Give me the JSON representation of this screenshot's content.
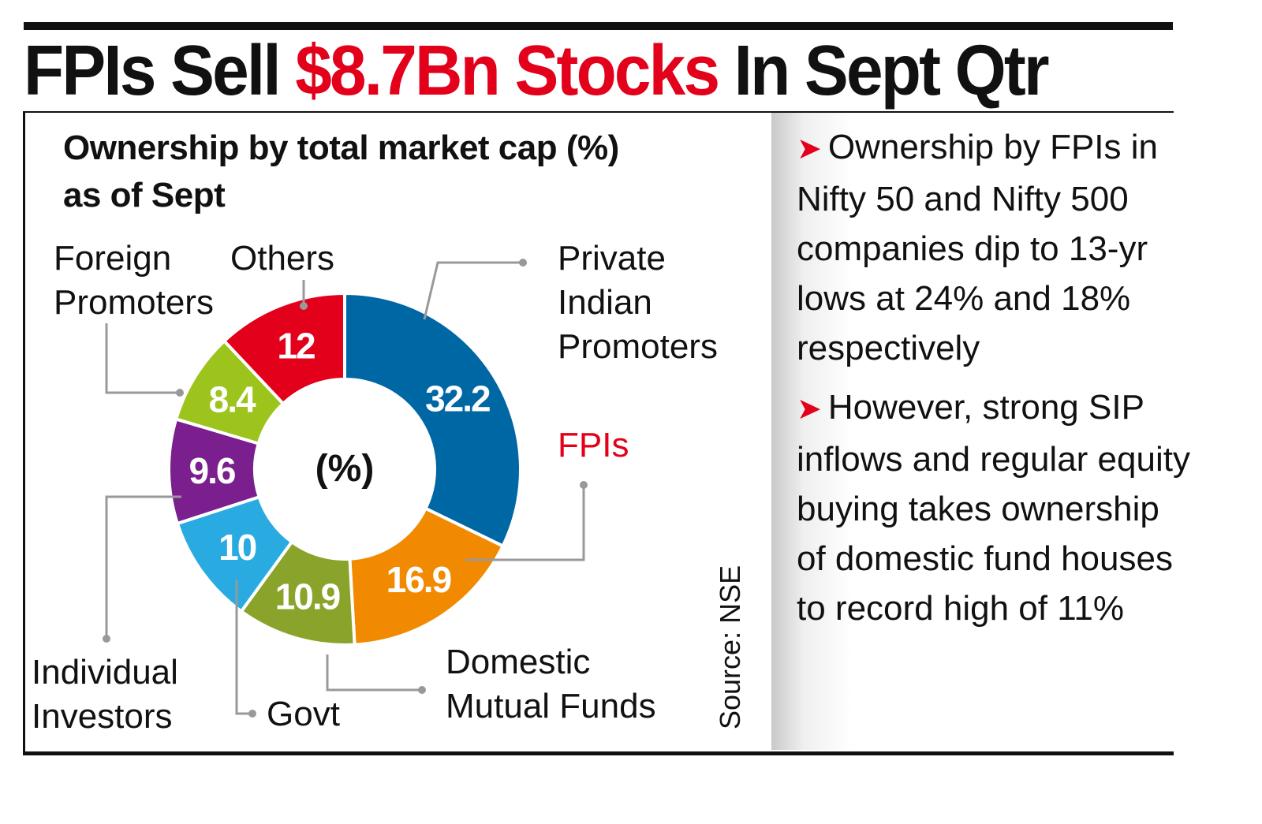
{
  "header": {
    "title_part1": "FPIs Sell ",
    "title_highlight": "$8.7Bn Stocks",
    "title_part2": " In Sept Qtr"
  },
  "chart_data": {
    "type": "pie",
    "donut": true,
    "title": "Ownership by total market cap (%)",
    "subtitle": "as of Sept",
    "center_label": "(%)",
    "categories": [
      "Private Indian Promoters",
      "FPIs",
      "Domestic Mutual Funds",
      "Govt",
      "Individual Investors",
      "Foreign Promoters",
      "Others"
    ],
    "values": [
      32.2,
      16.9,
      10.9,
      10,
      9.6,
      8.4,
      12
    ],
    "value_labels": [
      "32.2",
      "16.9",
      "10.9",
      "10",
      "9.6",
      "8.4",
      "12"
    ],
    "colors": [
      "#0067a5",
      "#f18a00",
      "#8aa32a",
      "#29abe2",
      "#7b1f8e",
      "#9dc41c",
      "#e2001a"
    ],
    "label_lines": {
      "private": [
        "Private",
        "Indian",
        "Promoters"
      ],
      "fpis": "FPIs",
      "dmf": [
        "Domestic",
        "Mutual Funds"
      ],
      "govt": "Govt",
      "individual": [
        "Individual",
        "Investors"
      ],
      "foreign": [
        "Foreign",
        "Promoters"
      ],
      "others": "Others"
    },
    "source": "Source: NSE"
  },
  "sidebar": {
    "bullets": [
      "Ownership by FPIs in Nifty 50 and Nifty 500 companies dip to 13-yr lows at 24% and 18% respectively",
      "However, strong SIP inflows and regular equity buying takes ownership of domestic fund houses to record high of 11%"
    ],
    "bullet_icon": "red-arrowhead-icon",
    "accent": "#e2001a"
  }
}
